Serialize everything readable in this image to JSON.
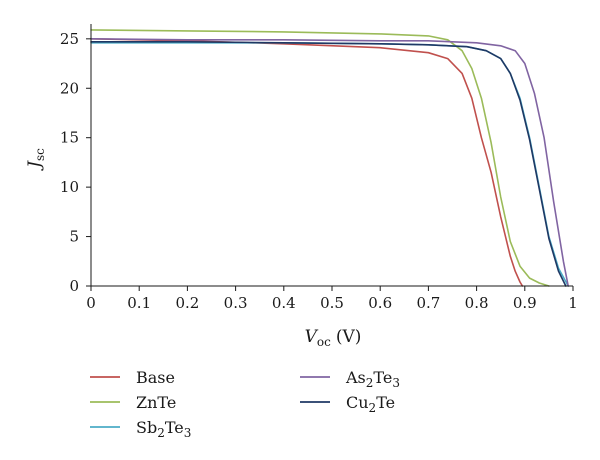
{
  "chart_data": {
    "type": "line",
    "xlabel": {
      "var": "V",
      "sub": "oc",
      "unit": "(V)"
    },
    "ylabel": {
      "var": "J",
      "sub": "sc"
    },
    "xlim": [
      0,
      1
    ],
    "ylim": [
      0,
      25
    ],
    "x_ticks": [
      {
        "value": 0,
        "label": "0"
      },
      {
        "value": 0.1,
        "label": "0.1"
      },
      {
        "value": 0.2,
        "label": "0.2"
      },
      {
        "value": 0.3,
        "label": "0.3"
      },
      {
        "value": 0.4,
        "label": "0.4"
      },
      {
        "value": 0.5,
        "label": "0.5"
      },
      {
        "value": 0.6,
        "label": "0.6"
      },
      {
        "value": 0.7,
        "label": "0.7"
      },
      {
        "value": 0.8,
        "label": "0.8"
      },
      {
        "value": 0.9,
        "label": "0.9"
      },
      {
        "value": 1,
        "label": "1"
      }
    ],
    "y_ticks": [
      {
        "value": 0,
        "label": "0"
      },
      {
        "value": 5,
        "label": "5"
      },
      {
        "value": 10,
        "label": "10"
      },
      {
        "value": 15,
        "label": "15"
      },
      {
        "value": 20,
        "label": "20"
      },
      {
        "value": 25,
        "label": "25"
      }
    ],
    "grid": false,
    "legend_position": "bottom",
    "series": [
      {
        "key": "base",
        "name": "Base",
        "name_parts": [
          {
            "t": "Base"
          }
        ],
        "color": "#c0504d",
        "x": [
          0,
          0.2,
          0.4,
          0.6,
          0.7,
          0.74,
          0.77,
          0.79,
          0.81,
          0.83,
          0.85,
          0.87,
          0.88,
          0.89,
          0.895
        ],
        "y": [
          25.0,
          24.8,
          24.5,
          24.1,
          23.6,
          23.0,
          21.5,
          19.0,
          15.0,
          11.5,
          7.0,
          3.0,
          1.5,
          0.4,
          0
        ]
      },
      {
        "key": "znte",
        "name": "ZnTe",
        "name_parts": [
          {
            "t": "ZnTe"
          }
        ],
        "color": "#9bbb59",
        "x": [
          0,
          0.2,
          0.4,
          0.6,
          0.7,
          0.74,
          0.77,
          0.79,
          0.81,
          0.83,
          0.85,
          0.87,
          0.89,
          0.91,
          0.93,
          0.95
        ],
        "y": [
          25.9,
          25.8,
          25.7,
          25.5,
          25.3,
          24.9,
          23.8,
          22.0,
          19.0,
          14.5,
          9.0,
          4.5,
          2.0,
          0.8,
          0.3,
          0
        ]
      },
      {
        "key": "sb2te3",
        "name": "Sb2Te3",
        "name_parts": [
          {
            "t": "Sb"
          },
          {
            "t": "2",
            "sub": true
          },
          {
            "t": "Te"
          },
          {
            "t": "3",
            "sub": true
          }
        ],
        "color": "#4bacc6",
        "x": [
          0,
          0.2,
          0.4,
          0.6,
          0.7,
          0.78,
          0.82,
          0.85,
          0.87,
          0.89,
          0.91,
          0.93,
          0.95,
          0.97,
          0.99
        ],
        "y": [
          24.6,
          24.6,
          24.6,
          24.5,
          24.4,
          24.2,
          23.8,
          23.0,
          21.5,
          19.0,
          15.0,
          10.0,
          5.0,
          1.8,
          0
        ]
      },
      {
        "key": "as2te3",
        "name": "As2Te3",
        "name_parts": [
          {
            "t": "As"
          },
          {
            "t": "2",
            "sub": true
          },
          {
            "t": "Te"
          },
          {
            "t": "3",
            "sub": true
          }
        ],
        "color": "#8064a2",
        "x": [
          0,
          0.2,
          0.4,
          0.6,
          0.7,
          0.8,
          0.85,
          0.88,
          0.9,
          0.92,
          0.94,
          0.96,
          0.98,
          0.99
        ],
        "y": [
          25.0,
          24.9,
          24.9,
          24.8,
          24.8,
          24.6,
          24.3,
          23.8,
          22.5,
          19.5,
          15.0,
          8.5,
          2.5,
          0
        ]
      },
      {
        "key": "cu2te",
        "name": "Cu2Te",
        "name_parts": [
          {
            "t": "Cu"
          },
          {
            "t": "2",
            "sub": true
          },
          {
            "t": "Te"
          }
        ],
        "color": "#1f3864",
        "x": [
          0,
          0.2,
          0.4,
          0.6,
          0.7,
          0.78,
          0.82,
          0.85,
          0.87,
          0.89,
          0.91,
          0.93,
          0.95,
          0.97,
          0.985
        ],
        "y": [
          24.7,
          24.7,
          24.6,
          24.5,
          24.4,
          24.2,
          23.8,
          23.0,
          21.5,
          18.8,
          14.8,
          9.8,
          4.8,
          1.5,
          0
        ]
      }
    ]
  }
}
